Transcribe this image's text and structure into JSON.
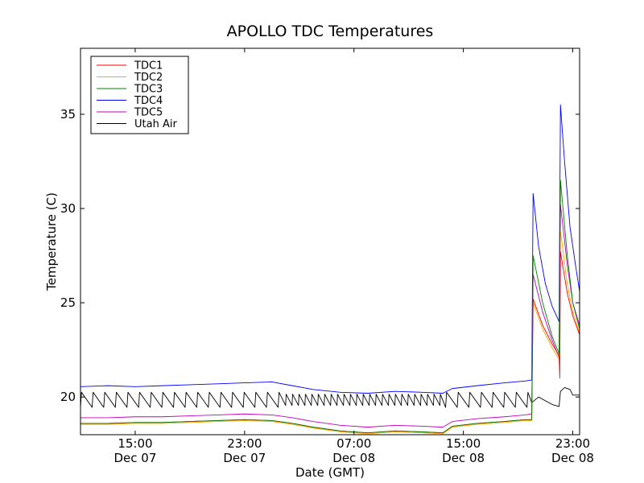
{
  "chart_data": {
    "type": "line",
    "title": "APOLLO TDC Temperatures",
    "xlabel": "Date (GMT)",
    "ylabel": "Temperature (C)",
    "x_unit": "hours since Dec 07 00:00 GMT",
    "xlim": [
      11.0,
      47.5
    ],
    "ylim": [
      18.0,
      38.5
    ],
    "x_ticks": [
      {
        "value": 15,
        "label_time": "15:00",
        "label_date": "Dec 07"
      },
      {
        "value": 23,
        "label_time": "23:00",
        "label_date": "Dec 07"
      },
      {
        "value": 31,
        "label_time": "07:00",
        "label_date": "Dec 08"
      },
      {
        "value": 39,
        "label_time": "15:00",
        "label_date": "Dec 08"
      },
      {
        "value": 47,
        "label_time": "23:00",
        "label_date": "Dec 08"
      }
    ],
    "y_ticks": [
      20,
      25,
      30,
      35
    ],
    "legend_position": "top-left",
    "series": [
      {
        "name": "TDC1",
        "color": "#ff0000",
        "points": [
          [
            11.0,
            18.6
          ],
          [
            13.0,
            18.6
          ],
          [
            15.0,
            18.65
          ],
          [
            17.0,
            18.65
          ],
          [
            19.0,
            18.7
          ],
          [
            21.0,
            18.75
          ],
          [
            23.0,
            18.8
          ],
          [
            25.0,
            18.75
          ],
          [
            26.5,
            18.6
          ],
          [
            28.0,
            18.4
          ],
          [
            30.0,
            18.2
          ],
          [
            32.0,
            18.1
          ],
          [
            34.0,
            18.2
          ],
          [
            36.0,
            18.15
          ],
          [
            37.5,
            18.1
          ],
          [
            38.2,
            18.45
          ],
          [
            40.0,
            18.6
          ],
          [
            42.0,
            18.7
          ],
          [
            43.5,
            18.8
          ],
          [
            44.0,
            18.8
          ],
          [
            44.1,
            25.2
          ],
          [
            44.8,
            23.8
          ],
          [
            45.5,
            22.8
          ],
          [
            46.0,
            22.2
          ],
          [
            46.05,
            21.0
          ],
          [
            46.1,
            27.7
          ],
          [
            46.6,
            25.5
          ],
          [
            47.0,
            24.3
          ],
          [
            47.5,
            23.3
          ]
        ]
      },
      {
        "name": "TDC2",
        "color": "#ffa500",
        "points": [
          [
            11.0,
            18.55
          ],
          [
            13.0,
            18.55
          ],
          [
            15.0,
            18.6
          ],
          [
            17.0,
            18.6
          ],
          [
            19.0,
            18.65
          ],
          [
            21.0,
            18.7
          ],
          [
            23.0,
            18.75
          ],
          [
            25.0,
            18.7
          ],
          [
            26.5,
            18.55
          ],
          [
            28.0,
            18.35
          ],
          [
            30.0,
            18.15
          ],
          [
            32.0,
            18.05
          ],
          [
            34.0,
            18.15
          ],
          [
            36.0,
            18.1
          ],
          [
            37.5,
            18.05
          ],
          [
            38.2,
            18.4
          ],
          [
            40.0,
            18.55
          ],
          [
            42.0,
            18.65
          ],
          [
            43.5,
            18.75
          ],
          [
            44.0,
            18.75
          ],
          [
            44.1,
            25.0
          ],
          [
            44.8,
            23.6
          ],
          [
            45.5,
            22.6
          ],
          [
            46.0,
            22.0
          ],
          [
            46.1,
            28.8
          ],
          [
            46.6,
            26.0
          ],
          [
            47.0,
            24.5
          ],
          [
            47.5,
            23.4
          ]
        ]
      },
      {
        "name": "TDC3",
        "color": "#008000",
        "points": [
          [
            11.0,
            18.6
          ],
          [
            13.0,
            18.6
          ],
          [
            15.0,
            18.65
          ],
          [
            17.0,
            18.65
          ],
          [
            19.0,
            18.7
          ],
          [
            21.0,
            18.75
          ],
          [
            23.0,
            18.8
          ],
          [
            25.0,
            18.75
          ],
          [
            26.5,
            18.6
          ],
          [
            28.0,
            18.4
          ],
          [
            30.0,
            18.2
          ],
          [
            32.0,
            18.1
          ],
          [
            34.0,
            18.2
          ],
          [
            36.0,
            18.15
          ],
          [
            37.5,
            18.1
          ],
          [
            38.2,
            18.45
          ],
          [
            40.0,
            18.6
          ],
          [
            42.0,
            18.7
          ],
          [
            43.5,
            18.8
          ],
          [
            44.0,
            18.8
          ],
          [
            44.1,
            27.5
          ],
          [
            44.8,
            25.0
          ],
          [
            45.5,
            23.2
          ],
          [
            46.0,
            22.3
          ],
          [
            46.1,
            31.5
          ],
          [
            46.6,
            27.5
          ],
          [
            47.0,
            25.0
          ],
          [
            47.5,
            23.6
          ]
        ]
      },
      {
        "name": "TDC4",
        "color": "#0000ff",
        "points": [
          [
            11.0,
            20.55
          ],
          [
            13.0,
            20.6
          ],
          [
            15.0,
            20.55
          ],
          [
            17.0,
            20.6
          ],
          [
            19.0,
            20.65
          ],
          [
            21.0,
            20.7
          ],
          [
            23.0,
            20.75
          ],
          [
            25.0,
            20.8
          ],
          [
            26.5,
            20.6
          ],
          [
            28.0,
            20.4
          ],
          [
            30.0,
            20.25
          ],
          [
            32.0,
            20.2
          ],
          [
            34.0,
            20.3
          ],
          [
            36.0,
            20.25
          ],
          [
            37.5,
            20.2
          ],
          [
            38.2,
            20.45
          ],
          [
            40.0,
            20.6
          ],
          [
            42.0,
            20.75
          ],
          [
            43.5,
            20.85
          ],
          [
            44.0,
            20.9
          ],
          [
            44.1,
            30.8
          ],
          [
            44.5,
            28.0
          ],
          [
            45.0,
            26.0
          ],
          [
            45.5,
            24.8
          ],
          [
            46.0,
            24.0
          ],
          [
            46.1,
            35.5
          ],
          [
            46.4,
            32.5
          ],
          [
            46.8,
            29.0
          ],
          [
            47.2,
            27.0
          ],
          [
            47.5,
            25.6
          ]
        ]
      },
      {
        "name": "TDC5",
        "color": "#bf00bf",
        "points": [
          [
            11.0,
            18.9
          ],
          [
            13.0,
            18.9
          ],
          [
            15.0,
            18.95
          ],
          [
            17.0,
            18.95
          ],
          [
            19.0,
            19.0
          ],
          [
            21.0,
            19.05
          ],
          [
            23.0,
            19.1
          ],
          [
            25.0,
            19.05
          ],
          [
            26.5,
            18.9
          ],
          [
            28.0,
            18.7
          ],
          [
            30.0,
            18.5
          ],
          [
            32.0,
            18.4
          ],
          [
            34.0,
            18.5
          ],
          [
            36.0,
            18.45
          ],
          [
            37.5,
            18.4
          ],
          [
            38.2,
            18.7
          ],
          [
            40.0,
            18.85
          ],
          [
            42.0,
            18.95
          ],
          [
            43.5,
            19.05
          ],
          [
            44.0,
            19.1
          ],
          [
            44.1,
            26.5
          ],
          [
            44.8,
            24.5
          ],
          [
            45.5,
            23.0
          ],
          [
            46.0,
            22.1
          ],
          [
            46.1,
            30.2
          ],
          [
            46.6,
            27.0
          ],
          [
            47.0,
            25.0
          ],
          [
            47.5,
            23.8
          ]
        ]
      },
      {
        "name": "Utah Air",
        "color": "#000000",
        "oscillation": [
          {
            "start": 11.0,
            "end": 26.0,
            "period": 0.85,
            "low": 19.45,
            "high": 20.25
          },
          {
            "start": 26.0,
            "end": 37.7,
            "period": 0.47,
            "low": 19.55,
            "high": 20.15
          },
          {
            "start": 37.7,
            "end": 44.0,
            "period": 0.85,
            "low": 19.45,
            "high": 20.25
          }
        ],
        "points": [
          [
            44.0,
            19.7
          ],
          [
            44.5,
            20.0
          ],
          [
            45.0,
            19.8
          ],
          [
            45.5,
            19.6
          ],
          [
            46.0,
            19.5
          ],
          [
            46.1,
            20.3
          ],
          [
            46.4,
            20.5
          ],
          [
            46.8,
            20.4
          ],
          [
            47.0,
            20.1
          ],
          [
            47.5,
            20.1
          ]
        ]
      }
    ]
  }
}
